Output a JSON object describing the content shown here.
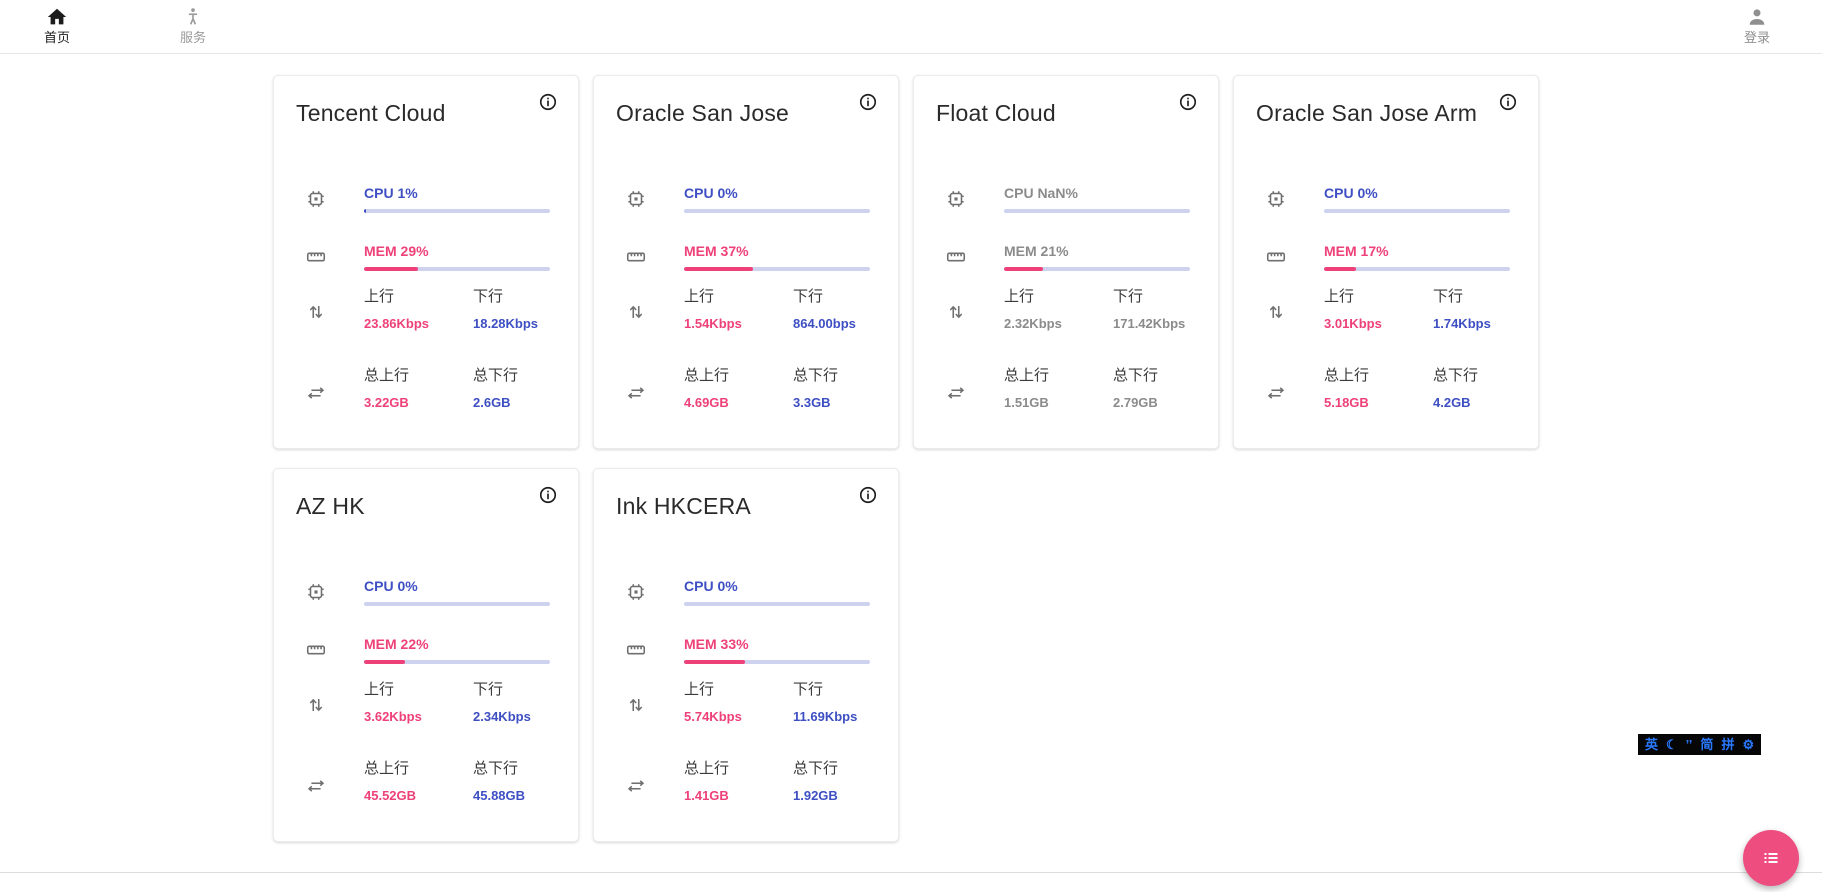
{
  "theme": {
    "blue": "#3d4fc3",
    "pink": "#ee4179",
    "track": "#cdd3ee",
    "fab": "#ee4d80",
    "ime_blue": "#2979ff",
    "offline_gray": "#8b8b8b"
  },
  "header": {
    "home_label": "首页",
    "services_label": "服务",
    "login_label": "登录"
  },
  "labels": {
    "upload": "上行",
    "download": "下行",
    "total_upload": "总上行",
    "total_download": "总下行"
  },
  "servers": [
    {
      "name": "Tencent Cloud",
      "status": "online",
      "cpu_text": "CPU 1%",
      "cpu_pct": 1,
      "mem_text": "MEM 29%",
      "mem_pct": 29,
      "upload": "23.86Kbps",
      "download": "18.28Kbps",
      "total_upload": "3.22GB",
      "total_download": "2.6GB"
    },
    {
      "name": "Oracle San Jose",
      "status": "online",
      "cpu_text": "CPU 0%",
      "cpu_pct": 0,
      "mem_text": "MEM 37%",
      "mem_pct": 37,
      "upload": "1.54Kbps",
      "download": "864.00bps",
      "total_upload": "4.69GB",
      "total_download": "3.3GB"
    },
    {
      "name": "Float Cloud",
      "status": "offline",
      "cpu_text": "CPU NaN%",
      "cpu_pct": 0,
      "mem_text": "MEM 21%",
      "mem_pct": 21,
      "upload": "2.32Kbps",
      "download": "171.42Kbps",
      "total_upload": "1.51GB",
      "total_download": "2.79GB"
    },
    {
      "name": "Oracle San Jose Arm",
      "status": "online",
      "cpu_text": "CPU 0%",
      "cpu_pct": 0,
      "mem_text": "MEM 17%",
      "mem_pct": 17,
      "upload": "3.01Kbps",
      "download": "1.74Kbps",
      "total_upload": "5.18GB",
      "total_download": "4.2GB"
    },
    {
      "name": "AZ HK",
      "status": "online",
      "cpu_text": "CPU 0%",
      "cpu_pct": 0,
      "mem_text": "MEM 22%",
      "mem_pct": 22,
      "upload": "3.62Kbps",
      "download": "2.34Kbps",
      "total_upload": "45.52GB",
      "total_download": "45.88GB"
    },
    {
      "name": "Ink HKCERA",
      "status": "online",
      "cpu_text": "CPU 0%",
      "cpu_pct": 0,
      "mem_text": "MEM 33%",
      "mem_pct": 33,
      "upload": "5.74Kbps",
      "download": "11.69Kbps",
      "total_upload": "1.41GB",
      "total_download": "1.92GB"
    }
  ],
  "ime": {
    "items": [
      "英",
      "☾",
      "’’",
      "简",
      "拼",
      "⚙"
    ]
  }
}
